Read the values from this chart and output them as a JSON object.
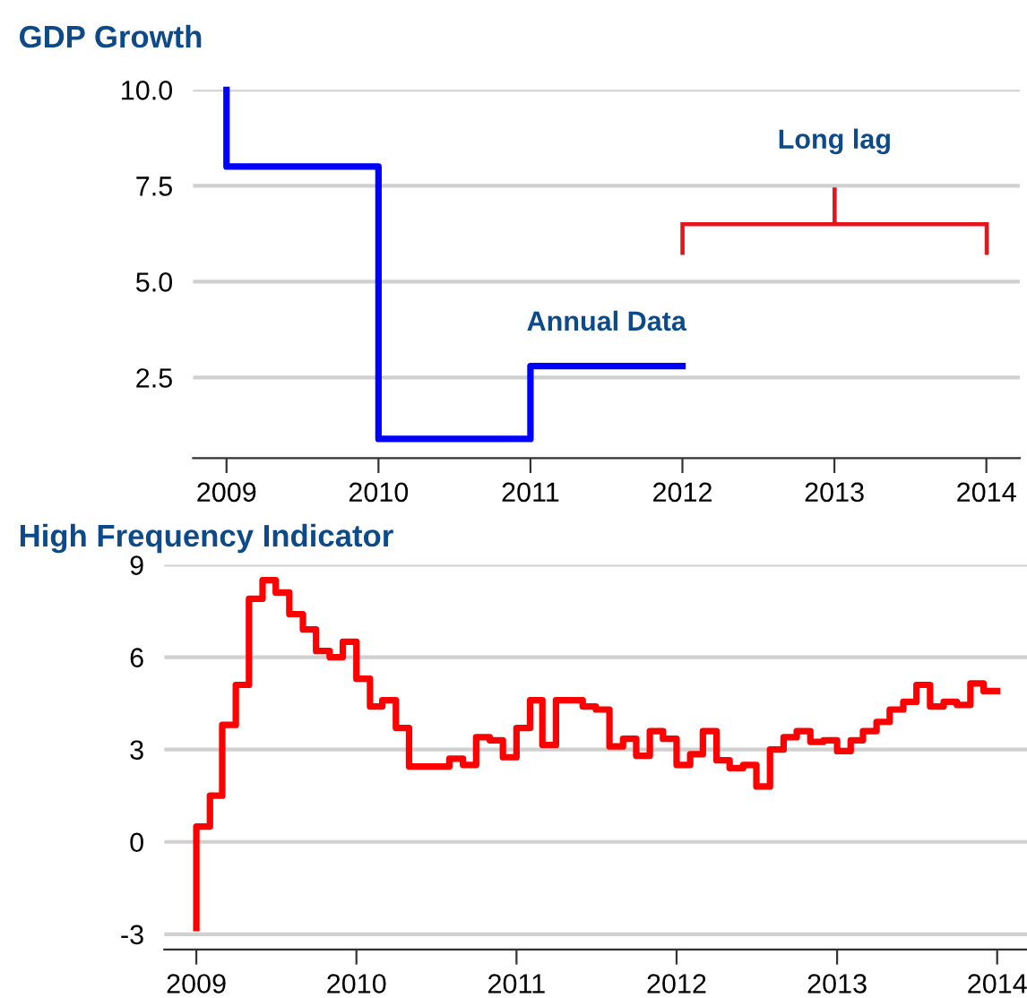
{
  "chart_data": [
    {
      "type": "step",
      "title": "GDP Growth",
      "x": [
        2009,
        2010,
        2011,
        2012
      ],
      "series": [
        {
          "name": "Annual Data",
          "color": "#0000ff",
          "values": [
            10.0,
            8.0,
            0.9,
            2.8
          ]
        }
      ],
      "xlim": [
        2008.78,
        2014.22
      ],
      "xticks": [
        2009,
        2010,
        2011,
        2012,
        2013,
        2014
      ],
      "ylim": [
        0.4,
        10
      ],
      "yticks": [
        {
          "value": 2.5,
          "label": "2.5"
        },
        {
          "value": 5,
          "label": "5.0"
        },
        {
          "value": 7.5,
          "label": "7.5"
        },
        {
          "value": 10,
          "label": "10.0"
        }
      ],
      "annotations": [
        "Long lag"
      ],
      "grid": "y",
      "legend": false
    },
    {
      "type": "step",
      "title": "High Frequency Indicator",
      "x": [
        "2009-01",
        "2009-02",
        "2009-03",
        "2009-04",
        "2009-05",
        "2009-06",
        "2009-07",
        "2009-08",
        "2009-09",
        "2009-10",
        "2009-11",
        "2009-12",
        "2010-01",
        "2010-02",
        "2010-03",
        "2010-04",
        "2010-05",
        "2010-06",
        "2010-07",
        "2010-08",
        "2010-09",
        "2010-10",
        "2010-11",
        "2010-12",
        "2011-01",
        "2011-02",
        "2011-03",
        "2011-04",
        "2011-05",
        "2011-06",
        "2011-07",
        "2011-08",
        "2011-09",
        "2011-10",
        "2011-11",
        "2011-12",
        "2012-01",
        "2012-02",
        "2012-03",
        "2012-04",
        "2012-05",
        "2012-06",
        "2012-07",
        "2012-08",
        "2012-09",
        "2012-10",
        "2012-11",
        "2012-12",
        "2013-01",
        "2013-02",
        "2013-03",
        "2013-04",
        "2013-05",
        "2013-06",
        "2013-07",
        "2013-08",
        "2013-09",
        "2013-10",
        "2013-11",
        "2013-12",
        "2014-01"
      ],
      "series": [
        {
          "color": "#ff0000",
          "values": [
            -2.8,
            0.5,
            1.5,
            3.8,
            5.1,
            7.9,
            8.5,
            8.1,
            7.4,
            6.9,
            6.2,
            6.0,
            6.5,
            5.3,
            4.4,
            4.6,
            3.7,
            2.45,
            2.45,
            2.45,
            2.7,
            2.5,
            3.4,
            3.3,
            2.75,
            3.7,
            4.6,
            3.15,
            4.6,
            4.6,
            4.4,
            4.3,
            3.1,
            3.35,
            2.8,
            3.6,
            3.35,
            2.5,
            2.85,
            3.6,
            2.65,
            2.4,
            2.5,
            1.8,
            3.0,
            3.4,
            3.6,
            3.25,
            3.3,
            2.95,
            3.3,
            3.6,
            3.9,
            4.3,
            4.55,
            5.1,
            4.4,
            4.55,
            4.45,
            5.15,
            4.9
          ]
        }
      ],
      "xlim": [
        "2008-10-20",
        "2014-03-10"
      ],
      "xticks": [
        "2009",
        "2010",
        "2011",
        "2012",
        "2013",
        "2014"
      ],
      "ylim": [
        -3.5,
        9
      ],
      "yticks": [
        -3,
        0,
        3,
        6,
        9
      ],
      "grid": "y",
      "legend": false
    }
  ]
}
